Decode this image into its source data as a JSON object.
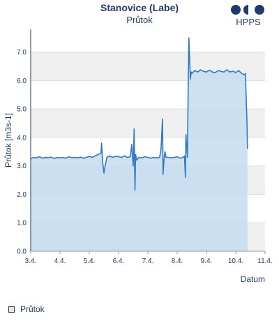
{
  "header": {
    "title": "Stanovice (Labe)",
    "subtitle": "Průtok",
    "logo_text": "HPPS"
  },
  "legend": {
    "label": "Průtok"
  },
  "chart_data": {
    "type": "area",
    "title": "Stanovice (Labe)",
    "subtitle": "Průtok",
    "xlabel": "Datum",
    "ylabel": "Průtok [m3s-1]",
    "ylim": [
      0,
      7.8
    ],
    "yticks": [
      0.0,
      1.0,
      2.0,
      3.0,
      4.0,
      5.0,
      6.0,
      7.0
    ],
    "ytick_labels": [
      "0.0",
      "1.0",
      "2.0",
      "3.0",
      "4.0",
      "5.0",
      "6.0",
      "7.0"
    ],
    "xlim": [
      0,
      8
    ],
    "xticks": [
      0,
      1,
      2,
      3,
      4,
      5,
      6,
      7,
      8
    ],
    "xtick_labels": [
      "3.4.",
      "4.4.",
      "5.4.",
      "6.4.",
      "7.4.",
      "8.4.",
      "9.4.",
      "10.4.",
      "11.4."
    ],
    "grid": true,
    "legend_position": "bottom-left",
    "colors": {
      "line": "#2e7bbf",
      "fill": "#c5dcf0",
      "band": "#f0f0f0",
      "text": "#1f3a6e"
    },
    "series": [
      {
        "name": "Průtok",
        "x": [
          0.0,
          0.1,
          0.2,
          0.3,
          0.4,
          0.5,
          0.6,
          0.7,
          0.8,
          0.9,
          1.0,
          1.1,
          1.2,
          1.3,
          1.4,
          1.5,
          1.6,
          1.7,
          1.8,
          1.9,
          2.0,
          2.1,
          2.2,
          2.3,
          2.4,
          2.42,
          2.46,
          2.5,
          2.55,
          2.6,
          2.7,
          2.8,
          2.9,
          3.0,
          3.1,
          3.2,
          3.3,
          3.4,
          3.45,
          3.5,
          3.53,
          3.56,
          3.58,
          3.62,
          3.7,
          3.8,
          3.9,
          4.0,
          4.1,
          4.2,
          4.3,
          4.4,
          4.45,
          4.5,
          4.52,
          4.55,
          4.58,
          4.62,
          4.7,
          4.8,
          4.9,
          5.0,
          5.1,
          5.2,
          5.25,
          5.28,
          5.3,
          5.35,
          5.38,
          5.4,
          5.43,
          5.45,
          5.48,
          5.5,
          5.6,
          5.7,
          5.8,
          5.9,
          6.0,
          6.1,
          6.2,
          6.3,
          6.4,
          6.5,
          6.6,
          6.7,
          6.8,
          6.9,
          7.0,
          7.1,
          7.2,
          7.3,
          7.33,
          7.35,
          7.38,
          7.4
        ],
        "y": [
          3.25,
          3.3,
          3.28,
          3.32,
          3.27,
          3.3,
          3.29,
          3.31,
          3.26,
          3.3,
          3.28,
          3.3,
          3.27,
          3.32,
          3.29,
          3.3,
          3.28,
          3.31,
          3.27,
          3.3,
          3.33,
          3.3,
          3.35,
          3.4,
          3.45,
          3.8,
          3.1,
          2.75,
          3.05,
          3.3,
          3.35,
          3.3,
          3.34,
          3.32,
          3.3,
          3.35,
          3.3,
          3.32,
          3.75,
          3.0,
          4.3,
          2.15,
          3.4,
          3.2,
          3.3,
          3.28,
          3.32,
          3.3,
          3.27,
          3.3,
          3.28,
          3.3,
          3.6,
          4.65,
          2.7,
          3.2,
          3.5,
          3.3,
          3.3,
          3.28,
          3.3,
          3.32,
          3.27,
          3.3,
          3.35,
          2.6,
          4.1,
          3.3,
          6.2,
          7.5,
          6.6,
          6.05,
          6.3,
          6.25,
          6.35,
          6.3,
          6.38,
          6.32,
          6.3,
          6.36,
          6.3,
          6.28,
          6.35,
          6.32,
          6.3,
          6.38,
          6.3,
          6.33,
          6.28,
          6.35,
          6.25,
          6.2,
          6.25,
          5.6,
          4.6,
          3.6
        ]
      }
    ]
  }
}
